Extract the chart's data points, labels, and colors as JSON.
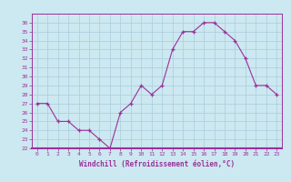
{
  "hours": [
    0,
    1,
    2,
    3,
    4,
    5,
    6,
    7,
    8,
    9,
    10,
    11,
    12,
    13,
    14,
    15,
    16,
    17,
    18,
    19,
    20,
    21,
    22,
    23
  ],
  "values": [
    27,
    27,
    25,
    25,
    24,
    24,
    23,
    22,
    26,
    27,
    29,
    28,
    29,
    33,
    35,
    35,
    36,
    36,
    35,
    34,
    32,
    29,
    29,
    28
  ],
  "line_color": "#9b309b",
  "marker_color": "#9b309b",
  "bg_color": "#cce8f0",
  "grid_color": "#aaccdd",
  "xlabel": "Windchill (Refroidissement éolien,°C)",
  "xlabel_color": "#9b309b",
  "tick_color": "#9b309b",
  "border_color": "#9b309b",
  "ylim": [
    22,
    37
  ],
  "yticks": [
    22,
    23,
    24,
    25,
    26,
    27,
    28,
    29,
    30,
    31,
    32,
    33,
    34,
    35,
    36
  ],
  "xticks": [
    0,
    1,
    2,
    3,
    4,
    5,
    6,
    7,
    8,
    9,
    10,
    11,
    12,
    13,
    14,
    15,
    16,
    17,
    18,
    19,
    20,
    21,
    22,
    23
  ]
}
